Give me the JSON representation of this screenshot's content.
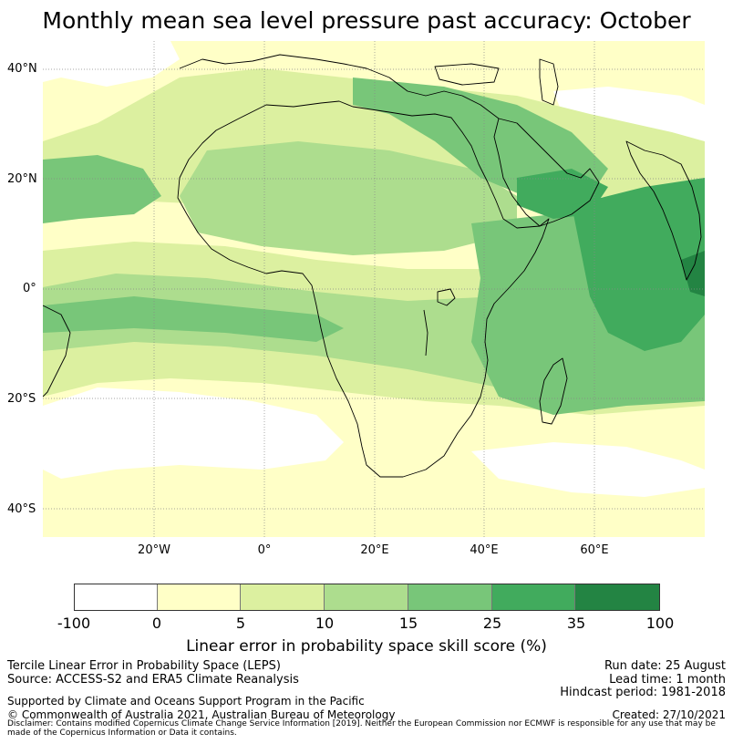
{
  "title": "Monthly mean sea level pressure past accuracy: October",
  "map": {
    "lat_labels": [
      "40°N",
      "20°N",
      "0°",
      "20°S",
      "40°S"
    ],
    "lon_labels": [
      "20°W",
      "0°",
      "20°E",
      "40°E",
      "60°E"
    ],
    "colors": {
      "c0": "#ffffff",
      "c1": "#ffffc7",
      "c2": "#dcf0a0",
      "c3": "#addd8e",
      "c4": "#78c679",
      "c5": "#41ab5d",
      "c6": "#238443",
      "coast": "#000000",
      "grid": "#888888"
    }
  },
  "colorbar": {
    "ticks": [
      "-100",
      "0",
      "5",
      "10",
      "15",
      "25",
      "35",
      "100"
    ],
    "colors": [
      "#ffffff",
      "#ffffc7",
      "#dcf0a0",
      "#addd8e",
      "#78c679",
      "#41ab5d",
      "#238443"
    ],
    "label": "Linear error in probability space skill score (%)"
  },
  "footer": {
    "left1": "Tercile Linear Error in Probability Space (LEPS)",
    "left2": "Source: ACCESS-S2 and ERA5 Climate Reanalysis",
    "left3": "Supported by Climate and Oceans Support Program in the Pacific",
    "left4": "© Commonwealth of Australia 2021, Australian Bureau of Meteorology",
    "right1": "Run date: 25 August",
    "right2": "Lead time: 1 month",
    "right3": "Hindcast period: 1981-2018",
    "right4": "Created: 27/10/2021",
    "disclaimer": "Disclaimer: Contains modified Copernicus Climate Change Service Information [2019]. Neither the European Commission nor ECMWF is responsible for any use that may be made of the Copernicus Information or Data it contains."
  }
}
